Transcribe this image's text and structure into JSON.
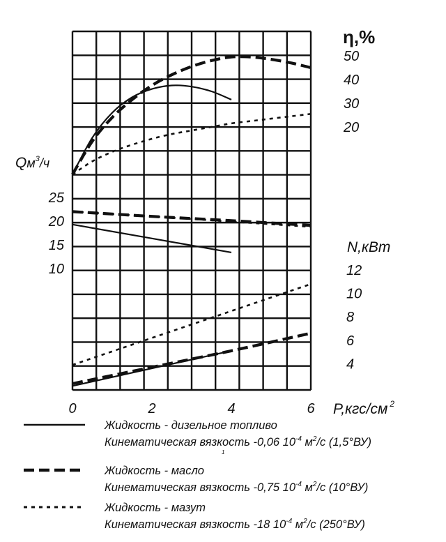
{
  "chart_data": {
    "type": "line",
    "x_axis": {
      "label": "P,кгс/см",
      "label_superscript": "2",
      "min": 0,
      "max": 6,
      "ticks": [
        0,
        2,
        4,
        6
      ],
      "tick_labels": [
        "0",
        "2",
        "4",
        "6"
      ]
    },
    "panels": [
      {
        "axis_label": "η,%",
        "axis_label_main": "η",
        "axis_label_rest": ",%",
        "ylim": [
          0,
          50
        ],
        "tick_labels": [
          "50",
          "40",
          "30",
          "20"
        ],
        "tick_values": [
          50,
          40,
          30,
          20
        ],
        "series": [
          {
            "style": "solid",
            "x": [
              0,
              0.5,
              1,
              1.5,
              2,
              2.5,
              3,
              3.5,
              4
            ],
            "y": [
              0,
              15.5,
              26,
              32.5,
              36,
              37.5,
              37,
              35,
              31.5
            ]
          },
          {
            "style": "dashed",
            "x": [
              0,
              0.5,
              1,
              1.5,
              2,
              2.5,
              3,
              3.5,
              4,
              4.5,
              5,
              5.5,
              6
            ],
            "y": [
              0,
              14,
              24,
              31.5,
              37.5,
              42,
              45.5,
              48,
              49.5,
              49.5,
              48.5,
              47,
              45
            ]
          },
          {
            "style": "dotted",
            "x": [
              0,
              0.5,
              1,
              1.5,
              2,
              2.5,
              3,
              3.5,
              4,
              4.5,
              5,
              5.5,
              6
            ],
            "y": [
              0,
              5.5,
              9.5,
              12.5,
              15,
              17,
              18.5,
              20,
              21.5,
              22.5,
              23.5,
              24.5,
              25.5
            ]
          }
        ]
      },
      {
        "axis_label": "Qм³/ч",
        "axis_label_main": "Q",
        "axis_label_unit": "м",
        "axis_label_sup": "3",
        "axis_label_tail": "/ч",
        "ylim": [
          10,
          25
        ],
        "tick_labels": [
          "25",
          "20",
          "15",
          "10"
        ],
        "tick_values": [
          25,
          20,
          15,
          10
        ],
        "series": [
          {
            "style": "solid",
            "x": [
              0,
              4
            ],
            "y": [
              19.3,
              13.4
            ]
          },
          {
            "style": "dashed",
            "x": [
              0,
              2,
              4,
              6
            ],
            "y": [
              22.0,
              21.0,
              20.1,
              19.1
            ]
          },
          {
            "style": "dotted",
            "x": [
              0,
              2,
              4,
              6
            ],
            "y": [
              22.0,
              21.0,
              19.9,
              18.8
            ]
          }
        ]
      },
      {
        "axis_label": "N,кВт",
        "ylim": [
          2,
          12
        ],
        "tick_labels": [
          "12",
          "10",
          "8",
          "6",
          "4"
        ],
        "tick_values": [
          12,
          10,
          8,
          6,
          4
        ],
        "series": [
          {
            "style": "solid",
            "x": [
              0,
              4
            ],
            "y": [
              2.1,
              5.1
            ]
          },
          {
            "style": "dashed",
            "x": [
              0,
              2,
              4,
              6
            ],
            "y": [
              2.3,
              3.7,
              5.1,
              6.6
            ]
          },
          {
            "style": "dotted",
            "x": [
              0,
              6
            ],
            "y": [
              3.9,
              10.8
            ]
          }
        ]
      }
    ],
    "grid": true,
    "legend": {
      "placement": "bottom",
      "entries": [
        {
          "style": "solid",
          "line1": "Жидкость - дизельное топливо",
          "line2": "Кинематическая вязкость -0,06 10",
          "exp": "-4",
          "unit_m": " м",
          "unit_sup": "2",
          "unit_rest": "/с (1,5°ВУ)",
          "note": "1"
        },
        {
          "style": "dashed",
          "line1": "Жидкость - масло",
          "line2": "Кинематическая вязкость -0,75 10",
          "exp": "-4",
          "unit_m": " м",
          "unit_sup": "2",
          "unit_rest": "/с (10°ВУ)"
        },
        {
          "style": "dotted",
          "line1": "Жидкость - мазут",
          "line2": "Кинематическая вязкость -18 10",
          "exp": "-4",
          "unit_m": " м",
          "unit_sup": "2",
          "unit_rest": "/с (250°ВУ)"
        }
      ]
    },
    "colors": {
      "line": "#111111",
      "grid": "#111111",
      "background": "#ffffff"
    }
  }
}
